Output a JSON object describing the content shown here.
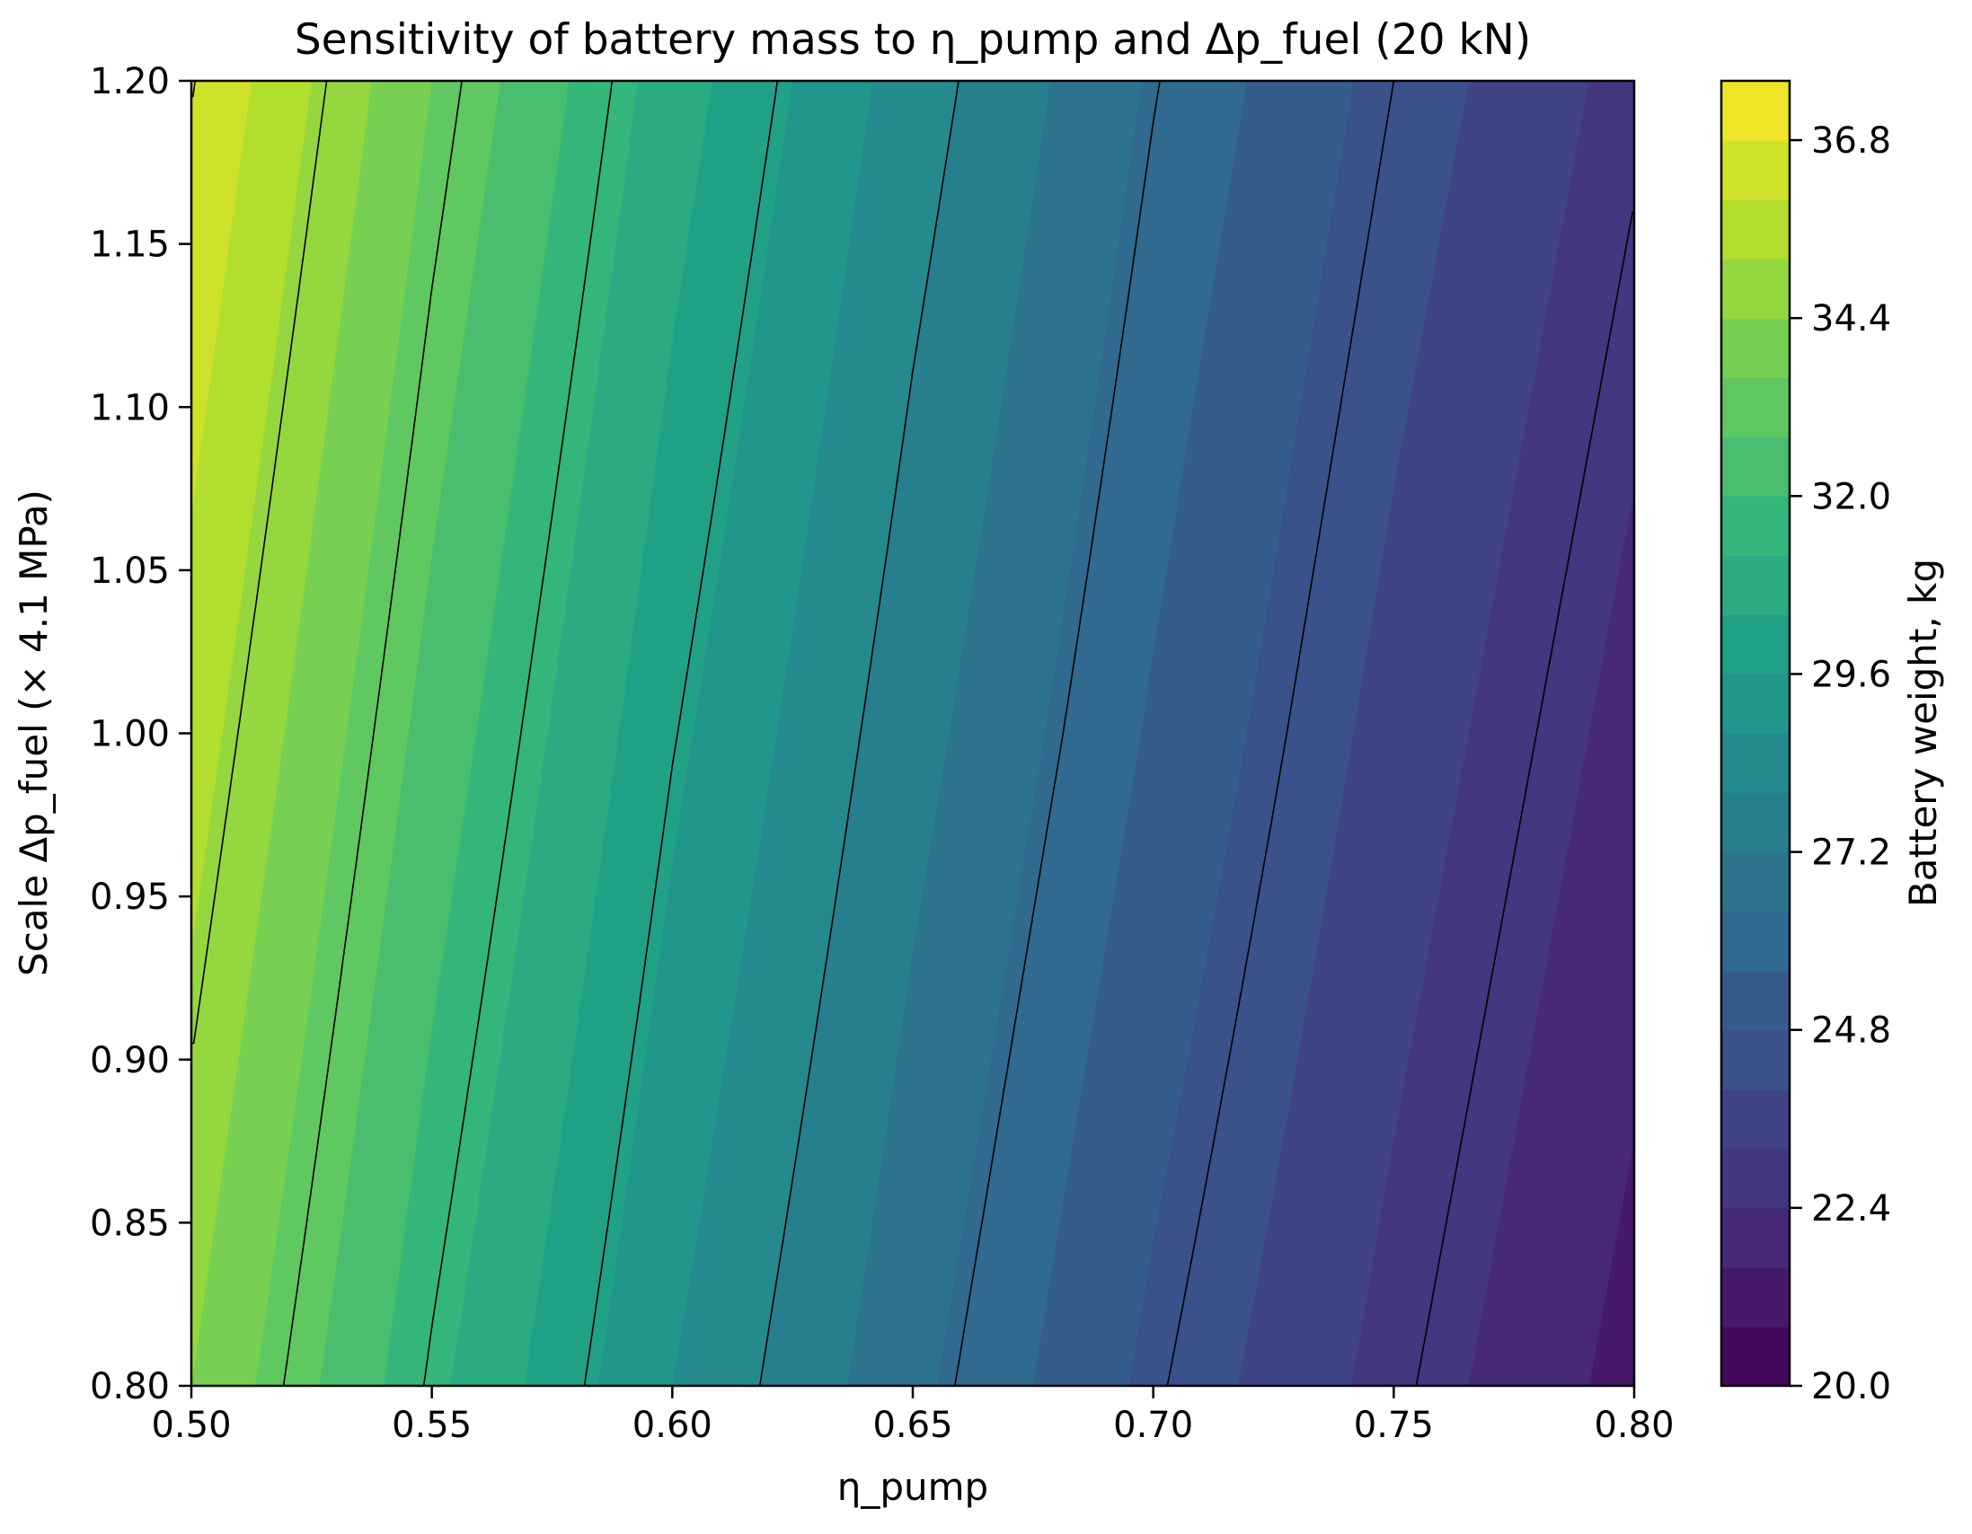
{
  "chart_data": {
    "type": "heatmap",
    "subtype": "filled-contour",
    "title": "Sensitivity of battery mass to η_pump and Δp_fuel (20 kN)",
    "xlabel": "η_pump",
    "ylabel": "Scale Δp_fuel (× 4.1 MPa)",
    "colorbar_label": "Battery weight, kg",
    "colormap": "viridis",
    "xlim": [
      0.5,
      0.8
    ],
    "ylim": [
      0.8,
      1.2
    ],
    "x_ticks": [
      "0.50",
      "0.55",
      "0.60",
      "0.65",
      "0.70",
      "0.75",
      "0.80"
    ],
    "y_ticks": [
      "0.80",
      "0.85",
      "0.90",
      "0.95",
      "1.00",
      "1.05",
      "1.10",
      "1.15",
      "1.20"
    ],
    "colorbar_range": [
      20.0,
      37.6
    ],
    "colorbar_ticks": [
      "20.0",
      "22.4",
      "24.8",
      "27.2",
      "29.6",
      "32.0",
      "34.4",
      "36.8"
    ],
    "fill_level_step": 0.8,
    "contour_line_levels": [
      21.0,
      22.75,
      24.5,
      26.25,
      28.0,
      29.75,
      31.5,
      33.25,
      35.0,
      36.75
    ],
    "surface_samples": {
      "description": "battery weight (kg) estimated at grid points",
      "x": [
        0.5,
        0.55,
        0.6,
        0.65,
        0.7,
        0.75,
        0.8
      ],
      "y": [
        0.8,
        1.0,
        1.2
      ],
      "z": [
        [
          34.4,
          31.4,
          28.8,
          26.6,
          24.6,
          22.9,
          21.3
        ],
        [
          35.6,
          32.5,
          29.8,
          27.5,
          25.5,
          23.7,
          22.1
        ],
        [
          36.8,
          33.6,
          30.8,
          28.4,
          26.3,
          24.5,
          22.9
        ]
      ]
    },
    "grid": false,
    "legend": "none"
  }
}
